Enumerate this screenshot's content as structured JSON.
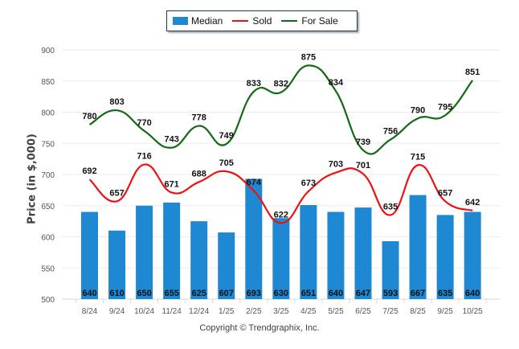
{
  "chart_data": {
    "type": "bar",
    "title": "",
    "xlabel": "",
    "ylabel": "Price (in $,000)",
    "ylim": [
      500,
      900
    ],
    "yticks": [
      500,
      550,
      600,
      650,
      700,
      750,
      800,
      850,
      900
    ],
    "grid": true,
    "legend_position": "top-center",
    "categories": [
      "8/24",
      "9/24",
      "10/24",
      "11/24",
      "12/24",
      "1/25",
      "2/25",
      "3/25",
      "4/25",
      "5/25",
      "6/25",
      "7/25",
      "8/25",
      "9/25",
      "10/25"
    ],
    "series": [
      {
        "name": "Median",
        "type": "bar",
        "color": "#1e88d2",
        "values": [
          640,
          610,
          650,
          655,
          625,
          607,
          693,
          630,
          651,
          640,
          647,
          593,
          667,
          635,
          640
        ]
      },
      {
        "name": "Sold",
        "type": "line",
        "color": "#ee1111",
        "values": [
          692,
          657,
          716,
          671,
          688,
          705,
          674,
          622,
          673,
          703,
          701,
          635,
          715,
          657,
          642
        ]
      },
      {
        "name": "For Sale",
        "type": "line",
        "color": "#126a12",
        "values": [
          780,
          803,
          770,
          743,
          778,
          749,
          833,
          832,
          875,
          834,
          739,
          756,
          790,
          795,
          851
        ]
      }
    ],
    "copyright": "Copyright © Trendgraphix, Inc."
  }
}
